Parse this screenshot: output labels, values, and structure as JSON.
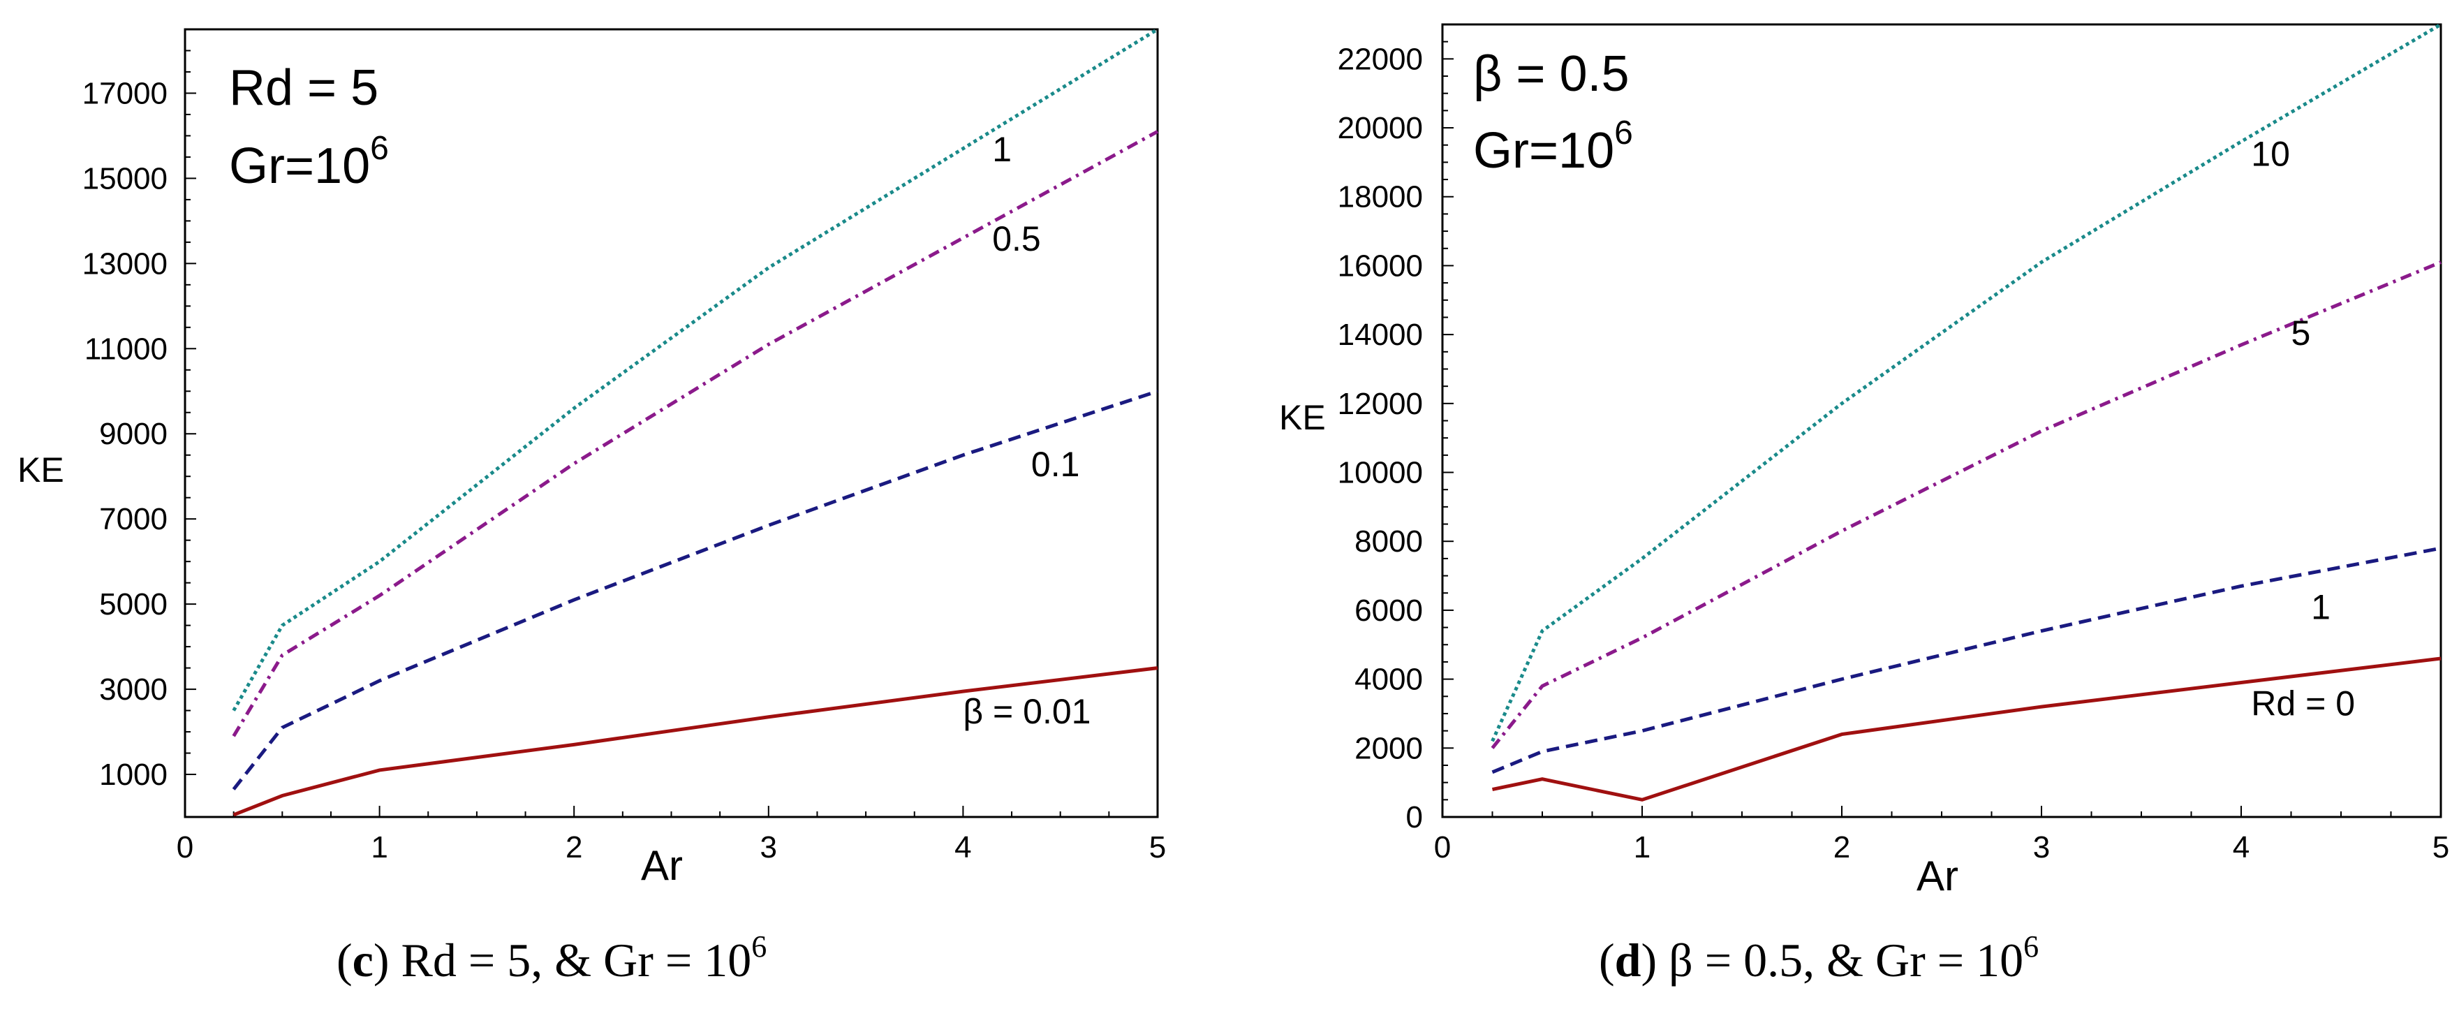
{
  "chart_data": [
    {
      "type": "line",
      "panel": "c",
      "xlabel": "Ar",
      "ylabel": "KE",
      "xlim": [
        0,
        5
      ],
      "ylim": [
        0,
        18500
      ],
      "xticks": [
        0,
        1,
        2,
        3,
        4,
        5
      ],
      "yticks": [
        1000,
        3000,
        5000,
        7000,
        9000,
        11000,
        13000,
        15000,
        17000
      ],
      "annotation": {
        "line1": "Rd = 5",
        "line2_base": "Gr=10",
        "line2_sup": "6"
      },
      "caption": {
        "open": "(",
        "letter": "c",
        "rest": ") Rd = 5, & Gr = 10",
        "sup": "6"
      },
      "series": [
        {
          "name": "β = 0.01",
          "label": "β = 0.01",
          "color": "#a01010",
          "dash": "solid",
          "x": [
            0.25,
            0.5,
            1,
            2,
            3,
            4,
            5
          ],
          "values": [
            50,
            500,
            1100,
            1700,
            2350,
            2950,
            3500
          ],
          "label_at": [
            4.0,
            2200
          ]
        },
        {
          "name": "0.1",
          "label": "0.1",
          "color": "#1a1a80",
          "dash": "dashed",
          "x": [
            0.25,
            0.5,
            1,
            2,
            3,
            4,
            5
          ],
          "values": [
            650,
            2100,
            3200,
            5100,
            6850,
            8500,
            10000
          ],
          "label_at": [
            4.35,
            8000
          ]
        },
        {
          "name": "0.5",
          "label": "0.5",
          "color": "#8b1a8b",
          "dash": "dashdot",
          "x": [
            0.25,
            0.5,
            1,
            2,
            3,
            4,
            5
          ],
          "values": [
            1900,
            3800,
            5200,
            8300,
            11100,
            13600,
            16100
          ],
          "label_at": [
            4.15,
            13300
          ]
        },
        {
          "name": "1",
          "label": "1",
          "color": "#1a8a8a",
          "dash": "dotted",
          "x": [
            0.25,
            0.5,
            1,
            2,
            3,
            4,
            5
          ],
          "values": [
            2500,
            4500,
            6000,
            9600,
            12900,
            15700,
            18500
          ],
          "label_at": [
            4.15,
            15400
          ]
        }
      ]
    },
    {
      "type": "line",
      "panel": "d",
      "xlabel": "Ar",
      "ylabel": "KE",
      "xlim": [
        0,
        5
      ],
      "ylim": [
        0,
        23000
      ],
      "xticks": [
        0,
        1,
        2,
        3,
        4,
        5
      ],
      "yticks": [
        0,
        2000,
        4000,
        6000,
        8000,
        10000,
        12000,
        14000,
        16000,
        18000,
        20000,
        22000
      ],
      "annotation": {
        "line1": "β = 0.5",
        "line2_base": "Gr=10",
        "line2_sup": "6"
      },
      "caption": {
        "open": "(",
        "letter": "d",
        "rest": ") β = 0.5, & Gr = 10",
        "sup": "6"
      },
      "series": [
        {
          "name": "Rd = 0",
          "label": "Rd = 0",
          "color": "#a01010",
          "dash": "solid",
          "x": [
            0.25,
            0.5,
            1,
            2,
            3,
            4,
            5
          ],
          "values": [
            800,
            1100,
            500,
            2400,
            3200,
            3900,
            4600
          ],
          "label_at": [
            4.05,
            2950
          ]
        },
        {
          "name": "1",
          "label": "1",
          "color": "#1a1a80",
          "dash": "dashed",
          "x": [
            0.25,
            0.5,
            1,
            2,
            3,
            4,
            5
          ],
          "values": [
            1300,
            1900,
            2500,
            4000,
            5400,
            6700,
            7800
          ],
          "label_at": [
            4.35,
            5750
          ]
        },
        {
          "name": "5",
          "label": "5",
          "color": "#8b1a8b",
          "dash": "dashdot",
          "x": [
            0.25,
            0.5,
            1,
            2,
            3,
            4,
            5
          ],
          "values": [
            2000,
            3800,
            5200,
            8300,
            11200,
            13700,
            16100
          ],
          "label_at": [
            4.25,
            13700
          ]
        },
        {
          "name": "10",
          "label": "10",
          "color": "#1a8a8a",
          "dash": "dotted",
          "x": [
            0.25,
            0.5,
            1,
            2,
            3,
            4,
            5
          ],
          "values": [
            2200,
            5400,
            7500,
            12000,
            16100,
            19600,
            23000
          ],
          "label_at": [
            4.05,
            18900
          ]
        }
      ]
    }
  ]
}
